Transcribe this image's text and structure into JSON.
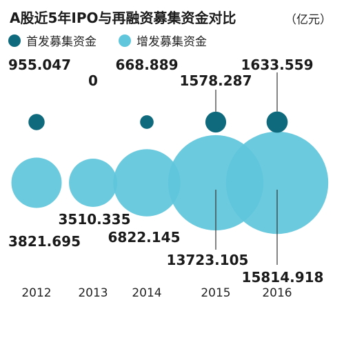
{
  "header": {
    "title": "A股近5年IPO与再融资募集资金对比",
    "unit": "（亿元）"
  },
  "legend": {
    "items": [
      {
        "label": "首发募集资金",
        "color": "#0e6a7c"
      },
      {
        "label": "增发募集资金",
        "color": "#5fc6db"
      }
    ]
  },
  "chart_data": {
    "type": "bubble",
    "title": "A股近5年IPO与再融资募集资金对比",
    "unit": "（亿元）",
    "categories": [
      "2012",
      "2013",
      "2014",
      "2015",
      "2016"
    ],
    "series": [
      {
        "name": "首发募集资金",
        "color": "#0e6a7c",
        "values": [
          955.047,
          0,
          668.889,
          1578.287,
          1633.559
        ],
        "labels": [
          "955.047",
          "0",
          "668.889",
          "1578.287",
          "1633.559"
        ]
      },
      {
        "name": "增发募集资金",
        "color": "#5fc6db",
        "values": [
          3821.695,
          3510.335,
          6822.145,
          13723.105,
          15814.918
        ],
        "labels": [
          "3821.695",
          "3510.335",
          "6822.145",
          "13723.105",
          "15814.918"
        ]
      }
    ]
  }
}
